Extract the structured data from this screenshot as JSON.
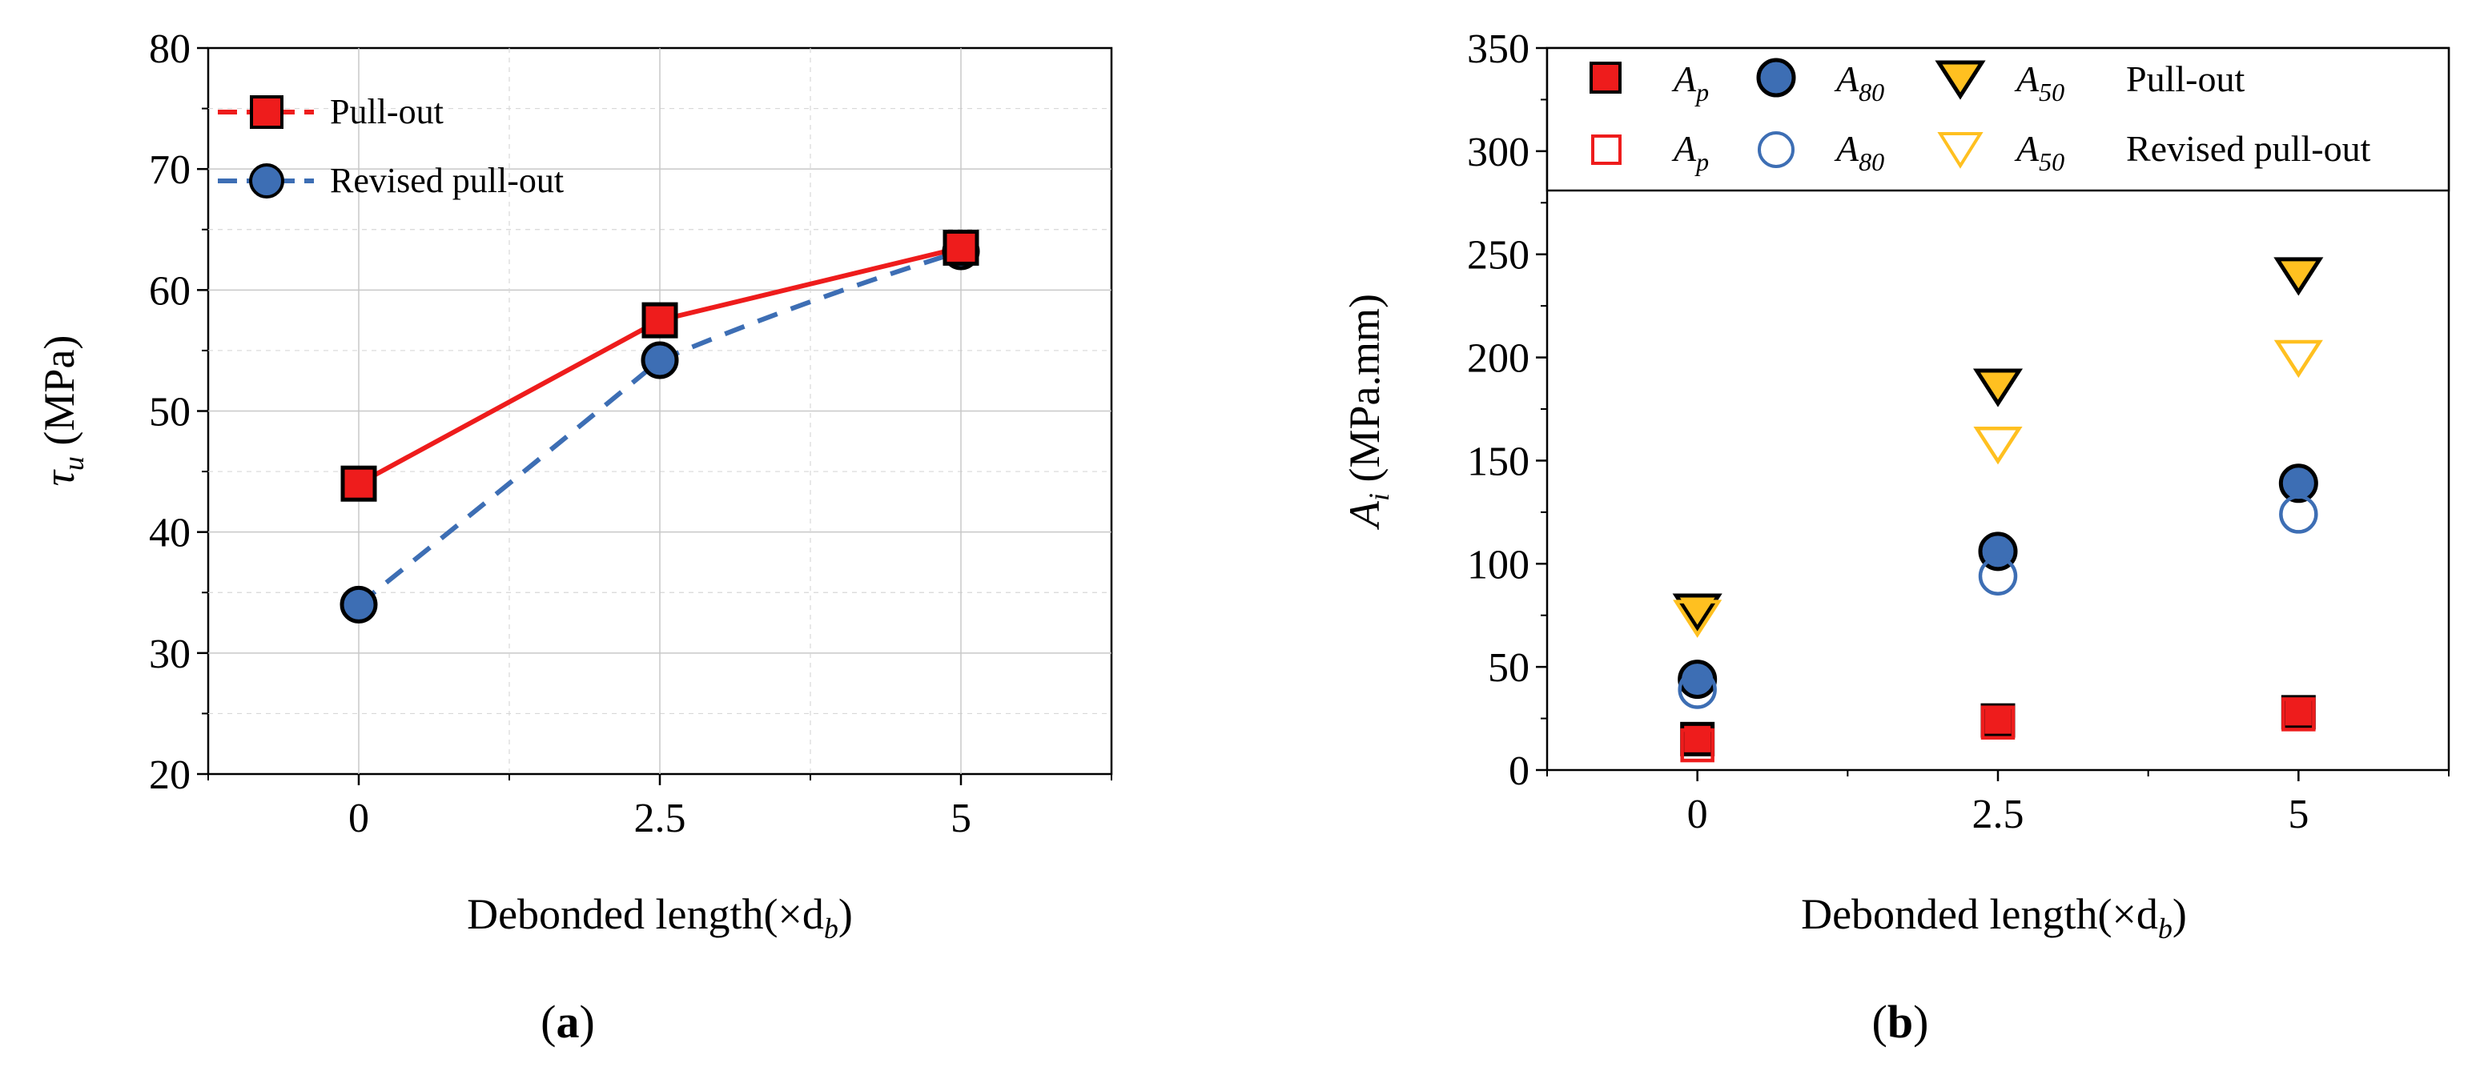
{
  "chart_data": [
    {
      "panel_label": "a",
      "type": "line",
      "xlabel": "Debonded length(×d",
      "xlabel_sub": "b",
      "xlabel_close": ")",
      "ylabel": "τ",
      "ylabel_sub": "u",
      "ylabel_unit": " (MPa)",
      "xlim": [
        -1.25,
        6.25
      ],
      "ylim": [
        20,
        80
      ],
      "xticks": [
        0,
        2.5,
        5
      ],
      "xtick_labels": [
        "0",
        "2.5",
        "5"
      ],
      "yticks": [
        20,
        30,
        40,
        50,
        60,
        70,
        80
      ],
      "ytick_labels": [
        "20",
        "30",
        "40",
        "50",
        "60",
        "70",
        "80"
      ],
      "grid": true,
      "legend_position": "top-left",
      "series": [
        {
          "name": "Pull-out",
          "marker": "square",
          "color": "#ee1c1c",
          "line": "solid",
          "x": [
            0,
            2.5,
            5
          ],
          "y": [
            44,
            57.5,
            63.5
          ]
        },
        {
          "name": "Revised pull-out",
          "marker": "circle",
          "color": "#3d6eb4",
          "line": "dashed",
          "x": [
            0,
            2.5,
            5
          ],
          "y": [
            34,
            54.2,
            63.2
          ]
        }
      ]
    },
    {
      "panel_label": "b",
      "type": "scatter",
      "xlabel": "Debonded length(×d",
      "xlabel_sub": "b",
      "xlabel_close": ")",
      "ylabel": "A",
      "ylabel_sub": "i",
      "ylabel_unit": " (MPa.mm)",
      "xlim": [
        -1.25,
        6.25
      ],
      "ylim": [
        0,
        350
      ],
      "xticks": [
        0,
        2.5,
        5
      ],
      "xtick_labels": [
        "0",
        "2.5",
        "5"
      ],
      "yticks": [
        0,
        50,
        100,
        150,
        200,
        250,
        300,
        350
      ],
      "ytick_labels": [
        "0",
        "50",
        "100",
        "150",
        "200",
        "250",
        "300",
        "350"
      ],
      "grid": false,
      "legend_position": "top",
      "legend_rows": [
        {
          "label": "Pull-out",
          "symbols": [
            {
              "text": "A",
              "sub": "p"
            },
            {
              "text": "A",
              "sub": "80"
            },
            {
              "text": "A",
              "sub": "50"
            }
          ]
        },
        {
          "label": "Revised pull-out",
          "symbols": [
            {
              "text": "A",
              "sub": "p"
            },
            {
              "text": "A",
              "sub": "80"
            },
            {
              "text": "A",
              "sub": "50"
            }
          ]
        }
      ],
      "series": [
        {
          "name": "A_p Pull-out",
          "marker": "square",
          "filled": true,
          "color": "#ee1c1c",
          "x": [
            0,
            2.5,
            5
          ],
          "y": [
            15,
            24,
            28
          ]
        },
        {
          "name": "A_80 Pull-out",
          "marker": "circle",
          "filled": true,
          "color": "#3d6eb4",
          "x": [
            0,
            2.5,
            5
          ],
          "y": [
            44,
            106,
            139
          ]
        },
        {
          "name": "A_50 Pull-out",
          "marker": "triangle-down",
          "filled": true,
          "color": "#ffc020",
          "x": [
            0,
            2.5,
            5
          ],
          "y": [
            77,
            186,
            240
          ]
        },
        {
          "name": "A_p Revised pull-out",
          "marker": "square",
          "filled": false,
          "color": "#ee1c1c",
          "x": [
            0,
            2.5,
            5
          ],
          "y": [
            12,
            23,
            27
          ]
        },
        {
          "name": "A_80 Revised pull-out",
          "marker": "circle",
          "filled": false,
          "color": "#3d6eb4",
          "x": [
            0,
            2.5,
            5
          ],
          "y": [
            39,
            94,
            124
          ]
        },
        {
          "name": "A_50 Revised pull-out",
          "marker": "triangle-down",
          "filled": false,
          "color": "#ffc020",
          "x": [
            0,
            2.5,
            5
          ],
          "y": [
            74,
            158,
            200
          ]
        }
      ]
    }
  ]
}
